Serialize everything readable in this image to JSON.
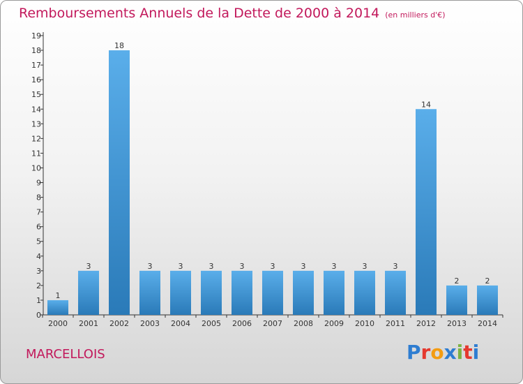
{
  "header": {
    "title": "Remboursements Annuels de la Dette de 2000 à 2014",
    "unit": "(en milliers d'€)"
  },
  "commune": "MARCELLOIS",
  "logo": {
    "text": "Proxiti",
    "letter_colors": [
      "#2e7dd1",
      "#e5392e",
      "#f39c12",
      "#2e7dd1",
      "#7cb342",
      "#e5392e",
      "#2e7dd1"
    ]
  },
  "colors": {
    "bar_light": "#5aaeea",
    "bar_dark": "#2a7ab8",
    "title": "#c2185b",
    "axis": "#333333",
    "label": "#333333"
  },
  "chart_data": {
    "type": "bar",
    "title": "Remboursements Annuels de la Dette de 2000 à 2014",
    "subtitle": "(en milliers d'€)",
    "categories": [
      "2000",
      "2001",
      "2002",
      "2003",
      "2004",
      "2005",
      "2006",
      "2007",
      "2008",
      "2009",
      "2010",
      "2011",
      "2012",
      "2013",
      "2014"
    ],
    "values": [
      1,
      3,
      18,
      3,
      3,
      3,
      3,
      3,
      3,
      3,
      3,
      3,
      14,
      2,
      2
    ],
    "xlabel": "",
    "ylabel": "",
    "ylim": [
      0,
      19
    ],
    "yticks": [
      0,
      1,
      2,
      3,
      4,
      5,
      6,
      7,
      8,
      9,
      10,
      11,
      12,
      13,
      14,
      15,
      16,
      17,
      18,
      19
    ],
    "grid": false,
    "data_labels": true
  }
}
